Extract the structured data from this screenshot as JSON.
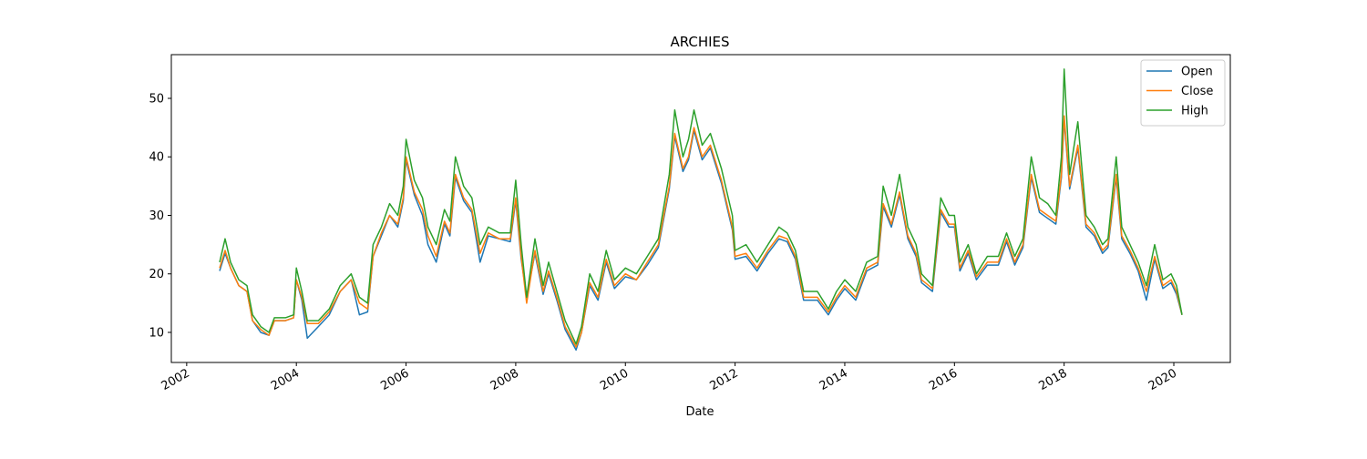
{
  "chart_data": {
    "type": "line",
    "title": "ARCHIES",
    "xlabel": "Date",
    "x": [
      2002.6,
      2002.7,
      2002.8,
      2002.95,
      2003.1,
      2003.2,
      2003.35,
      2003.5,
      2003.6,
      2003.8,
      2003.95,
      2004.0,
      2004.1,
      2004.2,
      2004.4,
      2004.6,
      2004.8,
      2005.0,
      2005.15,
      2005.3,
      2005.4,
      2005.55,
      2005.7,
      2005.85,
      2005.95,
      2006.0,
      2006.15,
      2006.3,
      2006.4,
      2006.55,
      2006.7,
      2006.8,
      2006.9,
      2007.05,
      2007.2,
      2007.35,
      2007.5,
      2007.7,
      2007.9,
      2008.0,
      2008.1,
      2008.2,
      2008.35,
      2008.5,
      2008.6,
      2008.75,
      2008.9,
      2009.1,
      2009.2,
      2009.35,
      2009.5,
      2009.65,
      2009.8,
      2010.0,
      2010.2,
      2010.4,
      2010.6,
      2010.8,
      2010.9,
      2011.05,
      2011.15,
      2011.25,
      2011.4,
      2011.55,
      2011.75,
      2011.95,
      2012.0,
      2012.2,
      2012.4,
      2012.6,
      2012.8,
      2012.95,
      2013.1,
      2013.25,
      2013.5,
      2013.7,
      2013.85,
      2014.0,
      2014.2,
      2014.4,
      2014.6,
      2014.7,
      2014.85,
      2015.0,
      2015.15,
      2015.3,
      2015.4,
      2015.6,
      2015.75,
      2015.9,
      2016.0,
      2016.1,
      2016.25,
      2016.4,
      2016.6,
      2016.8,
      2016.95,
      2017.1,
      2017.25,
      2017.4,
      2017.55,
      2017.7,
      2017.85,
      2017.95,
      2018.0,
      2018.1,
      2018.25,
      2018.4,
      2018.55,
      2018.7,
      2018.8,
      2018.95,
      2019.05,
      2019.2,
      2019.35,
      2019.5,
      2019.65,
      2019.8,
      2019.95,
      2020.05,
      2020.15
    ],
    "series": [
      {
        "name": "Open",
        "color": "#1f77b4",
        "values": [
          20.5,
          23.5,
          21,
          18,
          17,
          12,
          10,
          9.5,
          12,
          12,
          12.5,
          19,
          15.5,
          9,
          11,
          13,
          17,
          19,
          13,
          13.5,
          23,
          26.5,
          30,
          28,
          32.5,
          39.5,
          33.5,
          30,
          25,
          22,
          28.5,
          26.5,
          36.5,
          32.5,
          30.5,
          22,
          26.5,
          26,
          25.5,
          32.5,
          22.5,
          16,
          23.5,
          16.5,
          20,
          15.5,
          10.5,
          7,
          10,
          18,
          15.5,
          22,
          17.5,
          19.5,
          19,
          21.5,
          24.5,
          34.5,
          43.5,
          37.5,
          39.5,
          44.5,
          39.5,
          41.5,
          35.5,
          27.5,
          22.5,
          23,
          20.5,
          23.5,
          26,
          25.5,
          22.5,
          15.5,
          15.5,
          13,
          15.5,
          17.5,
          15.5,
          20.5,
          21.5,
          31.5,
          28,
          33.5,
          26,
          23,
          18.5,
          17,
          30.5,
          28,
          28,
          20.5,
          23.5,
          19,
          21.5,
          21.5,
          25.5,
          21.5,
          24.5,
          36.5,
          30.5,
          29.5,
          28.5,
          36.5,
          46.5,
          34.5,
          41.5,
          28,
          26.5,
          23.5,
          24.5,
          36.5,
          26,
          23.5,
          20.5,
          15.5,
          22.5,
          17.5,
          18.5,
          16.5,
          13
        ]
      },
      {
        "name": "Close",
        "color": "#ff7f0e",
        "values": [
          21,
          24,
          21,
          18,
          17,
          12,
          10.5,
          9.5,
          12,
          12,
          12.5,
          19,
          16,
          11.5,
          11.5,
          13.5,
          17,
          19,
          15,
          14,
          23,
          27,
          30,
          28.5,
          33,
          40,
          34,
          31,
          26.5,
          23,
          29,
          27,
          37,
          33,
          31,
          23.5,
          27,
          26,
          26,
          33,
          23,
          15,
          24,
          17,
          20.5,
          16,
          11,
          7.5,
          10,
          18.5,
          16,
          22.5,
          18,
          20,
          19,
          22,
          25,
          35,
          44,
          38,
          40,
          45,
          40,
          42,
          36,
          28,
          23,
          23.5,
          21,
          24,
          26.5,
          26,
          23,
          16,
          16,
          13.5,
          16,
          18,
          16,
          21,
          22,
          32,
          28.5,
          34,
          26.5,
          23.5,
          19,
          17.5,
          31,
          28.5,
          28.5,
          21,
          24,
          19.5,
          22,
          22,
          26,
          22,
          25,
          37,
          31,
          30,
          29,
          37,
          47,
          35,
          42,
          28.5,
          27,
          24,
          25,
          37,
          26.5,
          24,
          21,
          17,
          23,
          18,
          19,
          17,
          13
        ]
      },
      {
        "name": "High",
        "color": "#2ca02c",
        "values": [
          22,
          26,
          22,
          19,
          18,
          13,
          11,
          10,
          12.5,
          12.5,
          13,
          21,
          17,
          12,
          12,
          14,
          18,
          20,
          16,
          15,
          25,
          28,
          32,
          30,
          35,
          43,
          36,
          33,
          28,
          25,
          31,
          29,
          40,
          35,
          33,
          25,
          28,
          27,
          27,
          36,
          25,
          16,
          26,
          18,
          22,
          17,
          12,
          8,
          11,
          20,
          17,
          24,
          19,
          21,
          20,
          23,
          26,
          37,
          48,
          40,
          43,
          48,
          42,
          44,
          38,
          30,
          24,
          25,
          22,
          25,
          28,
          27,
          24,
          17,
          17,
          14,
          17,
          19,
          17,
          22,
          23,
          35,
          30,
          37,
          28,
          25,
          20,
          18,
          33,
          30,
          30,
          22,
          25,
          20,
          23,
          23,
          27,
          23,
          26,
          40,
          33,
          32,
          30,
          40,
          55,
          37,
          46,
          30,
          28,
          25,
          26,
          40,
          28,
          25,
          22,
          18,
          25,
          19,
          20,
          18,
          13
        ]
      }
    ],
    "xlim": [
      2001.72,
      2021.03
    ],
    "xticks": [
      2002,
      2004,
      2006,
      2008,
      2010,
      2012,
      2014,
      2016,
      2018,
      2020
    ],
    "ylim": [
      4.86,
      57.47
    ],
    "yticks": [
      10,
      20,
      30,
      40,
      50
    ],
    "legend": "upper right",
    "grid": false
  }
}
